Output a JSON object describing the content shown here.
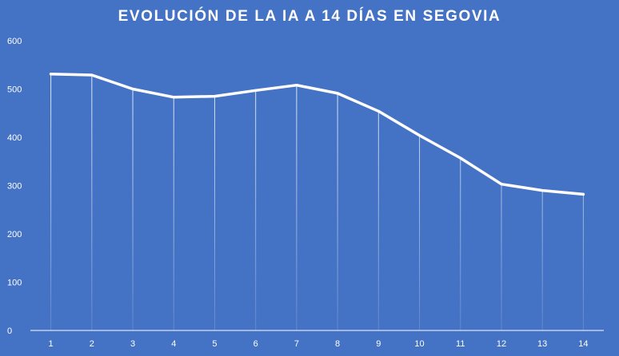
{
  "chart_data": {
    "type": "line",
    "title": "EVOLUCIÓN DE LA IA A 14 DÍAS EN SEGOVIA",
    "xlabel": "",
    "ylabel": "",
    "categories": [
      "1",
      "2",
      "3",
      "4",
      "5",
      "6",
      "7",
      "8",
      "9",
      "10",
      "11",
      "12",
      "13",
      "14"
    ],
    "series": [
      {
        "values": [
          531,
          529,
          500,
          483,
          485,
          497,
          508,
          491,
          454,
          404,
          357,
          303,
          290,
          282
        ]
      }
    ],
    "ylim": [
      0,
      600
    ],
    "yticks": [
      0,
      100,
      200,
      300,
      400,
      500,
      600
    ],
    "grid": false,
    "drop_lines": true,
    "legend": "none",
    "colors": {
      "background": "#4472c4",
      "line": "#ffffff",
      "text": "#ffffff"
    }
  }
}
